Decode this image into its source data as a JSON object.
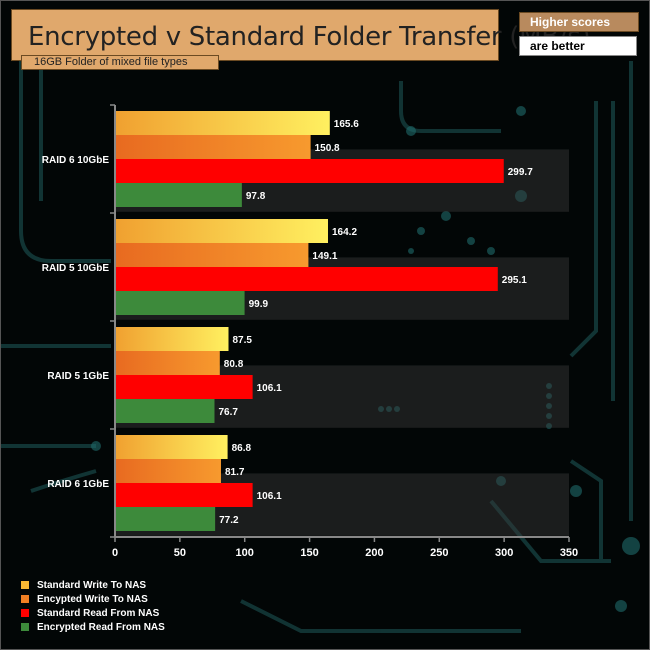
{
  "title": "Encrypted v Standard Folder Transfer (MB/s)",
  "subtitle": "16GB Folder of mixed file types",
  "note": {
    "line1": "Higher scores",
    "line2": "are better"
  },
  "chart_data": {
    "type": "bar",
    "orientation": "horizontal",
    "categories": [
      "RAID 6 10GbE",
      "RAID 5 10GbE",
      "RAID 5 1GbE",
      "RAID 6 1GbE"
    ],
    "series": [
      {
        "name": "Standard Write To NAS",
        "color": "#f7b733",
        "values": [
          165.6,
          164.2,
          87.5,
          86.8
        ]
      },
      {
        "name": "Encypted Write To NAS",
        "color": "#f07f23",
        "values": [
          150.8,
          149.1,
          80.8,
          81.7
        ]
      },
      {
        "name": "Standard Read From NAS",
        "color": "#ff0000",
        "values": [
          299.7,
          295.1,
          106.1,
          106.1
        ]
      },
      {
        "name": "Encrypted Read From NAS",
        "color": "#3d8a3b",
        "values": [
          97.8,
          99.9,
          76.7,
          77.2
        ]
      }
    ],
    "xlim": [
      0,
      350
    ],
    "xticks": [
      "0",
      "50",
      "100",
      "150",
      "200",
      "250",
      "300",
      "350"
    ],
    "legend_position": "bottom-left",
    "grid": false
  }
}
